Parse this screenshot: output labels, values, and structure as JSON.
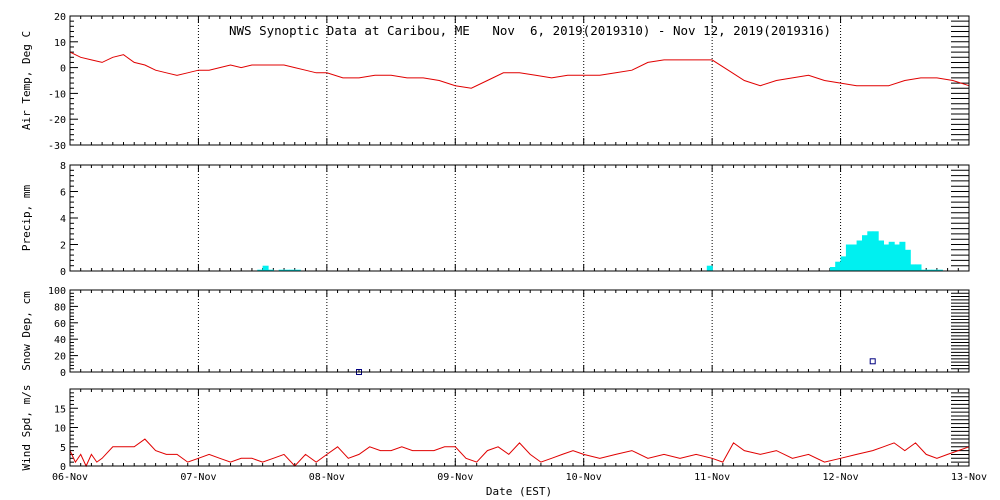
{
  "title": "NWS Synoptic Data at Caribou, ME   Nov  6, 2019(2019310) - Nov 12, 2019(2019316)",
  "xlabel": "Date (EST)",
  "x_ticks": [
    "06-Nov",
    "07-Nov",
    "08-Nov",
    "09-Nov",
    "10-Nov",
    "11-Nov",
    "12-Nov",
    "13-Nov"
  ],
  "colors": {
    "line": "#e00000",
    "precip": "#00f0f0",
    "snow": "#000080",
    "axis": "#000000"
  },
  "chart_data": [
    {
      "type": "line",
      "ylabel": "Air Temp, Deg C",
      "ylim": [
        -30,
        20
      ],
      "y_ticks": [
        -30,
        -20,
        -10,
        0,
        10,
        20
      ],
      "x": [
        "06-Nov 00:00",
        "06-Nov 02:00",
        "06-Nov 04:00",
        "06-Nov 06:00",
        "06-Nov 08:00",
        "06-Nov 10:00",
        "06-Nov 12:00",
        "06-Nov 14:00",
        "06-Nov 16:00",
        "06-Nov 18:00",
        "06-Nov 20:00",
        "06-Nov 22:00",
        "07-Nov 00:00",
        "07-Nov 02:00",
        "07-Nov 04:00",
        "07-Nov 06:00",
        "07-Nov 08:00",
        "07-Nov 10:00",
        "07-Nov 12:00",
        "07-Nov 14:00",
        "07-Nov 16:00",
        "07-Nov 18:00",
        "07-Nov 20:00",
        "07-Nov 22:00",
        "08-Nov 00:00",
        "08-Nov 03:00",
        "08-Nov 06:00",
        "08-Nov 09:00",
        "08-Nov 12:00",
        "08-Nov 15:00",
        "08-Nov 18:00",
        "08-Nov 21:00",
        "09-Nov 00:00",
        "09-Nov 03:00",
        "09-Nov 06:00",
        "09-Nov 09:00",
        "09-Nov 12:00",
        "09-Nov 15:00",
        "09-Nov 18:00",
        "09-Nov 21:00",
        "10-Nov 00:00",
        "10-Nov 03:00",
        "10-Nov 06:00",
        "10-Nov 09:00",
        "10-Nov 12:00",
        "10-Nov 15:00",
        "10-Nov 18:00",
        "10-Nov 21:00",
        "11-Nov 00:00",
        "11-Nov 03:00",
        "11-Nov 06:00",
        "11-Nov 09:00",
        "11-Nov 12:00",
        "11-Nov 15:00",
        "11-Nov 18:00",
        "11-Nov 21:00",
        "12-Nov 00:00",
        "12-Nov 03:00",
        "12-Nov 06:00",
        "12-Nov 09:00",
        "12-Nov 12:00",
        "12-Nov 15:00",
        "12-Nov 18:00",
        "12-Nov 21:00",
        "13-Nov 00:00"
      ],
      "y": [
        6,
        4,
        3,
        2,
        4,
        5,
        2,
        1,
        -1,
        -2,
        -3,
        -2,
        -1,
        -1,
        0,
        1,
        0,
        1,
        1,
        1,
        1,
        0,
        -1,
        -2,
        -2,
        -4,
        -4,
        -3,
        -3,
        -4,
        -4,
        -5,
        -7,
        -8,
        -5,
        -2,
        -2,
        -3,
        -4,
        -3,
        -3,
        -3,
        -2,
        -1,
        2,
        3,
        3,
        3,
        3,
        -1,
        -5,
        -7,
        -5,
        -4,
        -3,
        -5,
        -6,
        -7,
        -7,
        -7,
        -5,
        -4,
        -4,
        -5,
        -7
      ]
    },
    {
      "type": "bar",
      "ylabel": "Precip, mm",
      "ylim": [
        0,
        8
      ],
      "y_ticks": [
        0,
        2,
        4,
        6,
        8
      ],
      "x": [
        "07-Nov 11:00",
        "07-Nov 12:00",
        "07-Nov 13:00",
        "07-Nov 14:00",
        "07-Nov 15:00",
        "07-Nov 16:00",
        "07-Nov 17:00",
        "07-Nov 18:00",
        "10-Nov 23:00",
        "11-Nov 22:00",
        "11-Nov 23:00",
        "12-Nov 00:00",
        "12-Nov 01:00",
        "12-Nov 02:00",
        "12-Nov 03:00",
        "12-Nov 04:00",
        "12-Nov 05:00",
        "12-Nov 06:00",
        "12-Nov 07:00",
        "12-Nov 08:00",
        "12-Nov 09:00",
        "12-Nov 10:00",
        "12-Nov 11:00",
        "12-Nov 12:00",
        "12-Nov 13:00",
        "12-Nov 14:00",
        "12-Nov 15:00",
        "12-Nov 16:00",
        "12-Nov 17:00",
        "12-Nov 18:00"
      ],
      "values": [
        0.1,
        0.4,
        0.1,
        0,
        0.1,
        0.1,
        0.1,
        0.1,
        0.4,
        0.3,
        0.7,
        1.1,
        2.0,
        2.0,
        2.3,
        2.7,
        3.0,
        3.0,
        2.3,
        2.0,
        2.2,
        2.0,
        2.2,
        1.6,
        0.5,
        0.5,
        0.1,
        0.1,
        0.1,
        0.1
      ]
    },
    {
      "type": "scatter",
      "ylabel": "Snow Dep, cm",
      "ylim": [
        0,
        100
      ],
      "y_ticks": [
        0,
        20,
        40,
        60,
        80,
        100
      ],
      "x": [
        "08-Nov 06:00",
        "12-Nov 06:00"
      ],
      "y": [
        0,
        13
      ]
    },
    {
      "type": "line",
      "ylabel": "Wind Spd, m/s",
      "ylim": [
        0,
        20
      ],
      "y_ticks": [
        0,
        5,
        10,
        15
      ],
      "x": [
        "06-Nov 00:00",
        "06-Nov 01:00",
        "06-Nov 02:00",
        "06-Nov 03:00",
        "06-Nov 04:00",
        "06-Nov 05:00",
        "06-Nov 06:00",
        "06-Nov 08:00",
        "06-Nov 10:00",
        "06-Nov 12:00",
        "06-Nov 14:00",
        "06-Nov 16:00",
        "06-Nov 18:00",
        "06-Nov 20:00",
        "06-Nov 22:00",
        "07-Nov 00:00",
        "07-Nov 02:00",
        "07-Nov 04:00",
        "07-Nov 06:00",
        "07-Nov 08:00",
        "07-Nov 10:00",
        "07-Nov 12:00",
        "07-Nov 14:00",
        "07-Nov 16:00",
        "07-Nov 18:00",
        "07-Nov 20:00",
        "07-Nov 22:00",
        "08-Nov 00:00",
        "08-Nov 02:00",
        "08-Nov 04:00",
        "08-Nov 06:00",
        "08-Nov 08:00",
        "08-Nov 10:00",
        "08-Nov 12:00",
        "08-Nov 14:00",
        "08-Nov 16:00",
        "08-Nov 18:00",
        "08-Nov 20:00",
        "08-Nov 22:00",
        "09-Nov 00:00",
        "09-Nov 02:00",
        "09-Nov 04:00",
        "09-Nov 06:00",
        "09-Nov 08:00",
        "09-Nov 10:00",
        "09-Nov 12:00",
        "09-Nov 14:00",
        "09-Nov 16:00",
        "09-Nov 18:00",
        "09-Nov 20:00",
        "09-Nov 22:00",
        "10-Nov 00:00",
        "10-Nov 03:00",
        "10-Nov 06:00",
        "10-Nov 09:00",
        "10-Nov 12:00",
        "10-Nov 15:00",
        "10-Nov 18:00",
        "10-Nov 21:00",
        "11-Nov 00:00",
        "11-Nov 02:00",
        "11-Nov 04:00",
        "11-Nov 06:00",
        "11-Nov 09:00",
        "11-Nov 12:00",
        "11-Nov 15:00",
        "11-Nov 18:00",
        "11-Nov 21:00",
        "12-Nov 00:00",
        "12-Nov 03:00",
        "12-Nov 06:00",
        "12-Nov 08:00",
        "12-Nov 10:00",
        "12-Nov 12:00",
        "12-Nov 14:00",
        "12-Nov 16:00",
        "12-Nov 18:00",
        "12-Nov 20:00",
        "12-Nov 22:00",
        "13-Nov 00:00"
      ],
      "y": [
        4,
        1,
        3,
        0,
        3,
        1,
        2,
        5,
        5,
        5,
        7,
        4,
        3,
        3,
        1,
        2,
        3,
        2,
        1,
        2,
        2,
        1,
        2,
        3,
        0,
        3,
        1,
        3,
        5,
        2,
        3,
        5,
        4,
        4,
        5,
        4,
        4,
        4,
        5,
        5,
        2,
        1,
        4,
        5,
        3,
        6,
        3,
        1,
        2,
        3,
        4,
        3,
        2,
        3,
        4,
        2,
        3,
        2,
        3,
        2,
        1,
        6,
        4,
        3,
        4,
        2,
        3,
        1,
        2,
        3,
        4,
        5,
        6,
        4,
        6,
        3,
        2,
        3,
        4,
        5
      ]
    }
  ]
}
